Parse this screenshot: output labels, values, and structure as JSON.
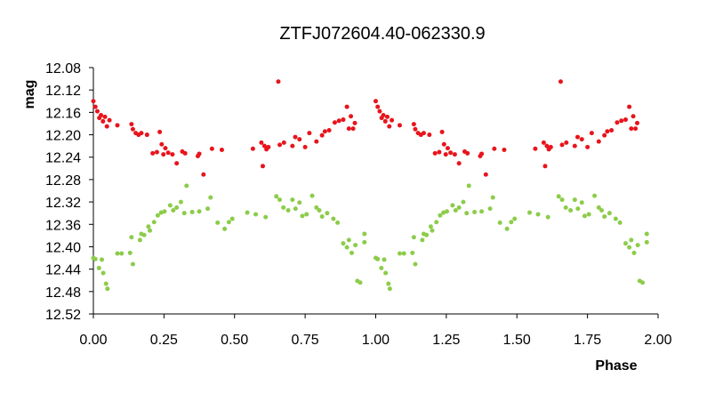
{
  "chart_data": {
    "type": "scatter",
    "title": "ZTFJ072604.40-062330.9",
    "xlabel": "Phase",
    "ylabel": "mag",
    "xlim": [
      0,
      2
    ],
    "ylim": [
      12.08,
      12.52
    ],
    "y_inverted": true,
    "grid": false,
    "legend": "none",
    "x_ticks": [
      "0.00",
      "0.25",
      "0.50",
      "0.75",
      "1.00",
      "1.25",
      "1.50",
      "1.75",
      "2.00"
    ],
    "y_ticks": [
      "12.08",
      "12.12",
      "12.16",
      "12.20",
      "12.24",
      "12.28",
      "12.32",
      "12.36",
      "12.40",
      "12.44",
      "12.48",
      "12.52"
    ],
    "series": [
      {
        "color": "#e8141c",
        "points": [
          [
            0.0,
            12.14
          ],
          [
            0.007,
            12.15
          ],
          [
            0.014,
            12.158
          ],
          [
            0.021,
            12.17
          ],
          [
            0.027,
            12.165
          ],
          [
            0.034,
            12.176
          ],
          [
            0.041,
            12.168
          ],
          [
            0.048,
            12.185
          ],
          [
            0.057,
            12.174
          ],
          [
            0.085,
            12.183
          ],
          [
            0.135,
            12.181
          ],
          [
            0.14,
            12.19
          ],
          [
            0.15,
            12.197
          ],
          [
            0.16,
            12.2
          ],
          [
            0.17,
            12.197
          ],
          [
            0.19,
            12.2
          ],
          [
            0.21,
            12.233
          ],
          [
            0.225,
            12.231
          ],
          [
            0.235,
            12.195
          ],
          [
            0.242,
            12.217
          ],
          [
            0.248,
            12.235
          ],
          [
            0.255,
            12.224
          ],
          [
            0.265,
            12.232
          ],
          [
            0.28,
            12.235
          ],
          [
            0.295,
            12.251
          ],
          [
            0.315,
            12.23
          ],
          [
            0.325,
            12.233
          ],
          [
            0.37,
            12.238
          ],
          [
            0.375,
            12.234
          ],
          [
            0.39,
            12.271
          ],
          [
            0.42,
            12.225
          ],
          [
            0.455,
            12.227
          ],
          [
            0.565,
            12.225
          ],
          [
            0.595,
            12.214
          ],
          [
            0.6,
            12.256
          ],
          [
            0.606,
            12.22
          ],
          [
            0.613,
            12.226
          ],
          [
            0.62,
            12.222
          ],
          [
            0.655,
            12.105
          ],
          [
            0.66,
            12.218
          ],
          [
            0.675,
            12.214
          ],
          [
            0.705,
            12.22
          ],
          [
            0.715,
            12.204
          ],
          [
            0.73,
            12.208
          ],
          [
            0.75,
            12.222
          ],
          [
            0.765,
            12.197
          ],
          [
            0.79,
            12.212
          ],
          [
            0.81,
            12.201
          ],
          [
            0.82,
            12.194
          ],
          [
            0.835,
            12.192
          ],
          [
            0.855,
            12.178
          ],
          [
            0.87,
            12.175
          ],
          [
            0.885,
            12.173
          ],
          [
            0.898,
            12.15
          ],
          [
            0.905,
            12.189
          ],
          [
            0.912,
            12.167
          ],
          [
            0.92,
            12.189
          ],
          [
            0.926,
            12.179
          ]
        ]
      },
      {
        "color": "#8ccc4a",
        "points": [
          [
            0.0,
            12.42
          ],
          [
            0.007,
            12.422
          ],
          [
            0.02,
            12.438
          ],
          [
            0.03,
            12.423
          ],
          [
            0.035,
            12.447
          ],
          [
            0.045,
            12.466
          ],
          [
            0.05,
            12.475
          ],
          [
            0.085,
            12.412
          ],
          [
            0.1,
            12.412
          ],
          [
            0.13,
            12.411
          ],
          [
            0.135,
            12.383
          ],
          [
            0.14,
            12.431
          ],
          [
            0.165,
            12.388
          ],
          [
            0.17,
            12.377
          ],
          [
            0.18,
            12.379
          ],
          [
            0.195,
            12.364
          ],
          [
            0.2,
            12.371
          ],
          [
            0.215,
            12.356
          ],
          [
            0.228,
            12.344
          ],
          [
            0.24,
            12.339
          ],
          [
            0.252,
            12.337
          ],
          [
            0.272,
            12.326
          ],
          [
            0.283,
            12.335
          ],
          [
            0.295,
            12.33
          ],
          [
            0.31,
            12.32
          ],
          [
            0.322,
            12.34
          ],
          [
            0.33,
            12.291
          ],
          [
            0.35,
            12.338
          ],
          [
            0.375,
            12.337
          ],
          [
            0.405,
            12.332
          ],
          [
            0.415,
            12.312
          ],
          [
            0.44,
            12.357
          ],
          [
            0.465,
            12.368
          ],
          [
            0.48,
            12.356
          ],
          [
            0.492,
            12.35
          ],
          [
            0.545,
            12.339
          ],
          [
            0.575,
            12.342
          ],
          [
            0.61,
            12.347
          ],
          [
            0.648,
            12.31
          ],
          [
            0.66,
            12.316
          ],
          [
            0.673,
            12.33
          ],
          [
            0.69,
            12.335
          ],
          [
            0.705,
            12.316
          ],
          [
            0.716,
            12.332
          ],
          [
            0.73,
            12.321
          ],
          [
            0.74,
            12.345
          ],
          [
            0.755,
            12.342
          ],
          [
            0.775,
            12.309
          ],
          [
            0.79,
            12.33
          ],
          [
            0.8,
            12.335
          ],
          [
            0.81,
            12.346
          ],
          [
            0.828,
            12.34
          ],
          [
            0.85,
            12.35
          ],
          [
            0.865,
            12.357
          ],
          [
            0.885,
            12.394
          ],
          [
            0.898,
            12.401
          ],
          [
            0.905,
            12.388
          ],
          [
            0.915,
            12.411
          ],
          [
            0.928,
            12.397
          ],
          [
            0.935,
            12.461
          ],
          [
            0.945,
            12.464
          ],
          [
            0.96,
            12.392
          ],
          [
            0.96,
            12.377
          ]
        ]
      }
    ]
  }
}
